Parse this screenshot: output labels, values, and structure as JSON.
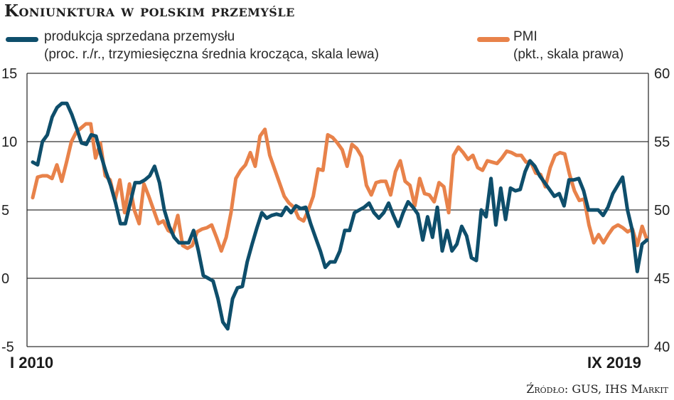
{
  "title": "Koniunktura w polskim przemyśle",
  "source": "Źródło: GUS, IHS Markit",
  "legend": {
    "production_line1": "produkcja sprzedana przemysłu",
    "production_line2": "(proc. r./r., trzymiesięczna średnia krocząca, skala lewa)",
    "pmi_line1": "PMI",
    "pmi_line2": "(pkt., skala prawa)"
  },
  "colors": {
    "production": "#0e4e6b",
    "pmi": "#e8824a",
    "axis": "#222222",
    "grid": "#333333"
  },
  "chart_data": {
    "type": "line",
    "x_start_label": "I 2010",
    "x_end_label": "IX 2019",
    "left_axis": {
      "min": -5,
      "max": 15,
      "ticks": [
        "15",
        "10",
        "5",
        "0",
        "-5"
      ]
    },
    "right_axis": {
      "min": 40,
      "max": 60,
      "ticks": [
        "60",
        "55",
        "50",
        "45",
        "40"
      ]
    },
    "grid": true,
    "series": [
      {
        "name": "produkcja sprzedana przemysłu",
        "axis": "left",
        "values": [
          8.5,
          8.3,
          10.0,
          10.5,
          11.8,
          12.5,
          12.8,
          12.8,
          12.0,
          11.0,
          9.9,
          9.8,
          10.5,
          10.4,
          9.0,
          7.8,
          6.8,
          5.5,
          4.0,
          4.0,
          5.5,
          7.0,
          7.0,
          7.2,
          7.5,
          8.2,
          7.0,
          5.0,
          3.8,
          3.0,
          2.6,
          2.6,
          2.6,
          3.5,
          2.0,
          0.2,
          0.0,
          -0.2,
          -1.5,
          -3.2,
          -3.7,
          -1.5,
          -0.7,
          -0.6,
          1.2,
          2.5,
          3.7,
          4.8,
          4.4,
          4.6,
          4.7,
          4.6,
          5.2,
          4.8,
          5.3,
          5.1,
          5.2,
          4.0,
          3.0,
          2.0,
          0.8,
          1.2,
          1.2,
          2.0,
          3.5,
          3.5,
          4.8,
          5.0,
          5.2,
          5.5,
          4.8,
          4.4,
          4.8,
          5.5,
          4.6,
          3.8,
          4.8,
          5.6,
          5.2,
          4.7,
          2.8,
          4.5,
          3.0,
          5.2,
          2.0,
          3.5,
          2.0,
          2.5,
          3.8,
          3.1,
          1.5,
          1.3,
          5.0,
          4.5,
          7.3,
          3.9,
          6.6,
          4.3,
          6.6,
          6.4,
          6.5,
          7.8,
          8.6,
          8.2,
          7.5,
          7.0,
          6.5,
          6.0,
          6.2,
          5.3,
          7.2,
          7.2,
          7.3,
          6.4,
          5.0,
          5.0,
          5.0,
          4.6,
          5.2,
          6.2,
          6.8,
          7.4,
          5.0,
          3.5,
          0.5,
          2.5,
          2.8
        ]
      },
      {
        "name": "PMI",
        "axis": "right",
        "values": [
          50.9,
          52.4,
          52.5,
          52.5,
          52.3,
          53.3,
          52.1,
          53.5,
          55.0,
          55.7,
          56.0,
          56.3,
          56.3,
          53.8,
          54.9,
          52.5,
          52.2,
          50.7,
          52.2,
          49.8,
          51.9,
          50.0,
          49.0,
          51.9,
          51.0,
          50.0,
          49.0,
          49.2,
          48.5,
          48.3,
          49.6,
          47.4,
          47.2,
          47.4,
          48.4,
          48.6,
          48.7,
          48.9,
          48.0,
          47.0,
          48.0,
          49.8,
          52.3,
          52.9,
          53.3,
          54.2,
          53.2,
          55.4,
          55.9,
          54.0,
          53.0,
          52.0,
          51.0,
          50.5,
          50.2,
          49.4,
          49.2,
          50.0,
          51.0,
          53.0,
          52.9,
          55.5,
          55.3,
          54.9,
          54.4,
          53.2,
          54.8,
          54.5,
          53.9,
          51.8,
          51.1,
          52.0,
          52.1,
          52.1,
          51.1,
          52.8,
          53.6,
          52.1,
          51.8,
          50.3,
          52.3,
          51.2,
          51.1,
          50.6,
          52.0,
          51.7,
          49.8,
          54.0,
          54.6,
          54.2,
          53.7,
          54.0,
          53.1,
          52.9,
          53.6,
          53.5,
          53.4,
          53.8,
          54.3,
          54.2,
          54.0,
          54.0,
          53.5,
          53.5,
          52.7,
          52.6,
          51.7,
          53.1,
          54.0,
          54.2,
          54.1,
          52.6,
          51.4,
          50.7,
          50.8,
          48.9,
          47.6,
          48.2,
          47.6,
          48.2,
          48.7,
          48.9,
          48.7,
          48.4,
          48.6,
          47.4,
          48.8,
          47.8
        ]
      }
    ]
  }
}
